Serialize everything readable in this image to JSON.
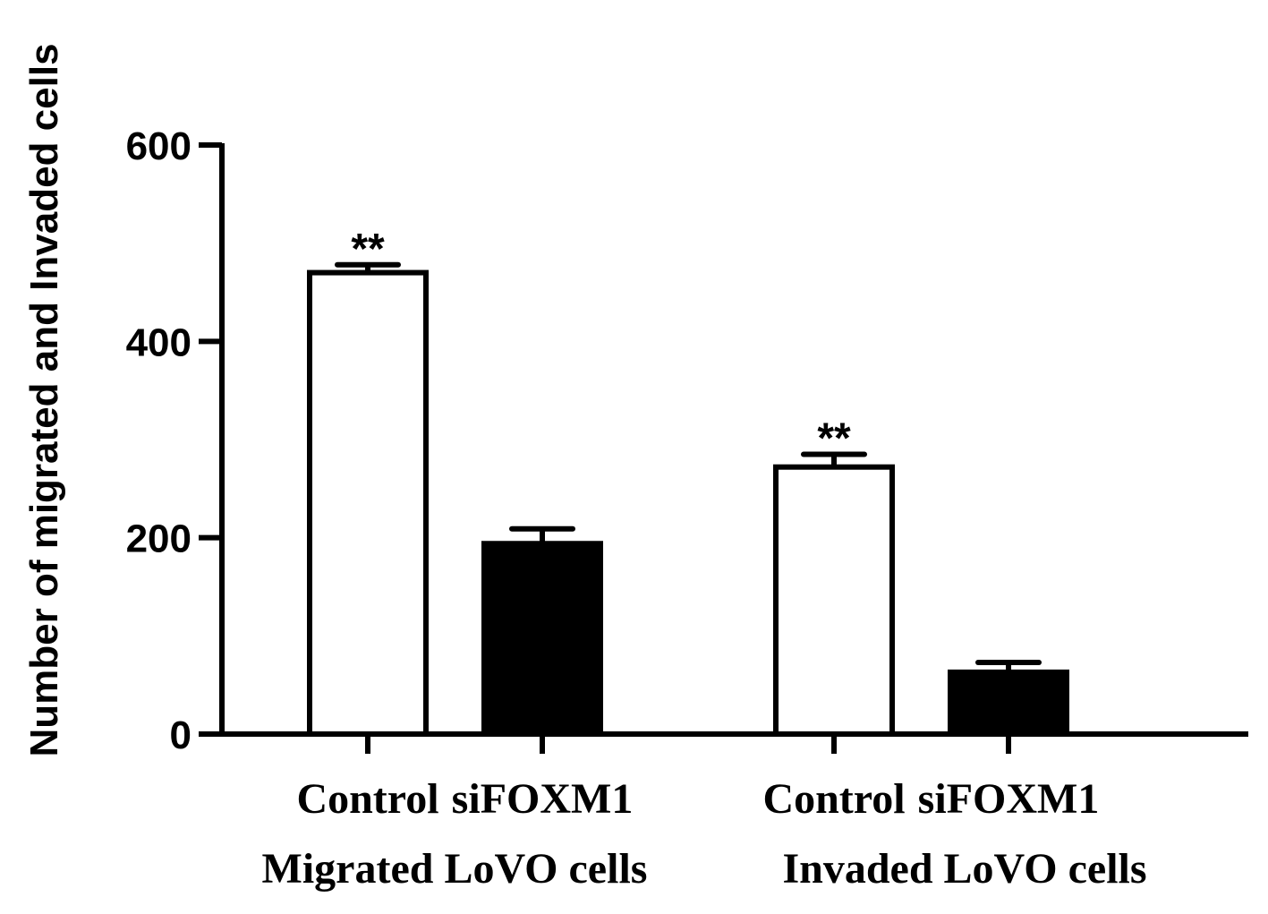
{
  "chart_data": {
    "type": "bar",
    "title": "",
    "ylabel": "Number of migrated and Invaded cells",
    "xlabel": "",
    "ylim": [
      0,
      600
    ],
    "yticks": [
      "0",
      "200",
      "400",
      "600"
    ],
    "grid": false,
    "bars": [
      {
        "category": "Control",
        "group": "Migrated LoVO cells",
        "value": 470,
        "error": 8,
        "fill": "white",
        "annotation": "**"
      },
      {
        "category": "siFOXM1",
        "group": "Migrated LoVO cells",
        "value": 194,
        "error": 15,
        "fill": "black",
        "annotation": ""
      },
      {
        "category": "Control",
        "group": "Invaded LoVO cells",
        "value": 272,
        "error": 13,
        "fill": "white",
        "annotation": "**"
      },
      {
        "category": "siFOXM1",
        "group": "Invaded LoVO cells",
        "value": 63,
        "error": 10,
        "fill": "black",
        "annotation": ""
      }
    ],
    "groups": [
      "Migrated LoVO cells",
      "Invaded LoVO cells"
    ]
  }
}
